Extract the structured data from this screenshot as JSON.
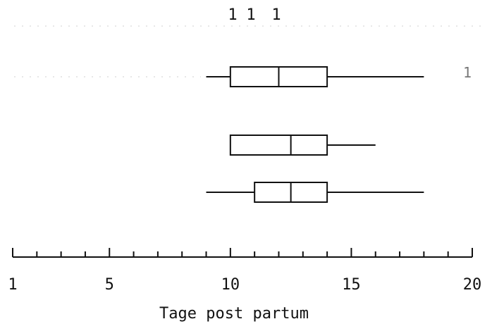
{
  "chart_data": {
    "type": "box",
    "top_labels": [
      "1",
      "1",
      "1"
    ],
    "right_label": "1",
    "xlabel": "Tage post partum",
    "xlim": [
      1,
      20
    ],
    "x_tick_labels": [
      "1",
      "5",
      "10",
      "15",
      "20"
    ],
    "major_ticks": [
      1,
      5,
      10,
      15,
      20
    ],
    "minor_ticks": [
      2,
      3,
      4,
      6,
      7,
      8,
      9,
      11,
      12,
      13,
      14,
      16,
      17,
      18,
      19
    ],
    "boxes": [
      {
        "min": 9,
        "q1": 10,
        "median": 12,
        "q3": 14,
        "max": 18
      },
      {
        "min": 10,
        "q1": 10,
        "median": 12.5,
        "q3": 14,
        "max": 16
      },
      {
        "min": 9,
        "q1": 11,
        "median": 12.5,
        "q3": 14,
        "max": 18
      }
    ]
  }
}
